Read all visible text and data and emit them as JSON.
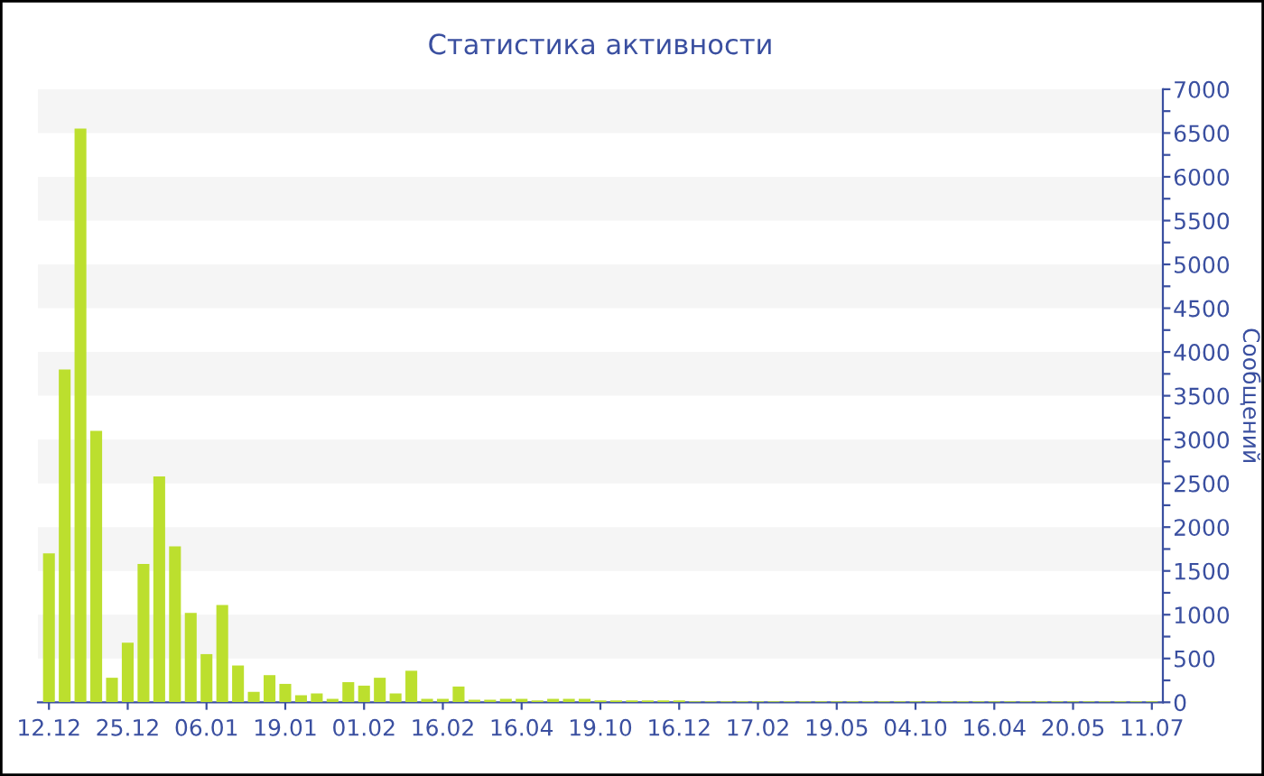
{
  "chart_data": {
    "type": "bar",
    "title": "Статистика активности",
    "ylabel": "Сообщений",
    "categories": [
      "12.12",
      null,
      null,
      null,
      null,
      "25.12",
      null,
      null,
      null,
      null,
      "06.01",
      null,
      null,
      null,
      null,
      "19.01",
      null,
      null,
      null,
      null,
      "01.02",
      null,
      null,
      null,
      null,
      "16.02",
      null,
      null,
      null,
      null,
      "16.04",
      null,
      null,
      null,
      null,
      "19.10",
      null,
      null,
      null,
      null,
      "16.12",
      null,
      null,
      null,
      null,
      "17.02",
      null,
      null,
      null,
      null,
      "19.05",
      null,
      null,
      null,
      null,
      "04.10",
      null,
      null,
      null,
      null,
      "16.04",
      null,
      null,
      null,
      null,
      "20.05",
      null,
      null,
      null,
      null,
      "11.07"
    ],
    "values": [
      1700,
      3800,
      6550,
      3100,
      280,
      680,
      1580,
      2580,
      1780,
      1020,
      550,
      1110,
      420,
      120,
      310,
      210,
      80,
      100,
      40,
      230,
      190,
      280,
      100,
      360,
      40,
      40,
      180,
      30,
      30,
      40,
      40,
      20,
      40,
      40,
      40,
      20,
      20,
      20,
      20,
      20,
      20,
      10,
      10,
      10,
      10,
      10,
      10,
      10,
      10,
      10,
      10,
      10,
      10,
      10,
      10,
      10,
      10,
      10,
      10,
      10,
      10,
      10,
      10,
      10,
      10,
      10,
      10,
      10,
      10,
      10,
      10
    ],
    "color": "#bcdf2e",
    "ylim": [
      0,
      7000
    ],
    "yticks": [
      0,
      {
        "value": 250,
        "label": null
      },
      500,
      {
        "value": 750,
        "label": null
      },
      1000,
      {
        "value": 1250,
        "label": null
      },
      1500,
      {
        "value": 1750,
        "label": null
      },
      2000,
      {
        "value": 2250,
        "label": null
      },
      2500,
      {
        "value": 2750,
        "label": null
      },
      3000,
      {
        "value": 3250,
        "label": null
      },
      3500,
      {
        "value": 3750,
        "label": null
      },
      4000,
      {
        "value": 4250,
        "label": null
      },
      4500,
      {
        "value": 4750,
        "label": null
      },
      5000,
      {
        "value": 5250,
        "label": null
      },
      5500,
      {
        "value": 5750,
        "label": null
      },
      6000,
      {
        "value": 6250,
        "label": null
      },
      6500,
      {
        "value": 6750,
        "label": null
      },
      7000
    ],
    "bands": [
      {
        "axis": "y",
        "from": 500,
        "to": 1000,
        "color": "#f5f5f5"
      },
      {
        "axis": "y",
        "from": 1500,
        "to": 2000,
        "color": "#f5f5f5"
      },
      {
        "axis": "y",
        "from": 2500,
        "to": 3000,
        "color": "#f5f5f5"
      },
      {
        "axis": "y",
        "from": 3500,
        "to": 4000,
        "color": "#f5f5f5"
      },
      {
        "axis": "y",
        "from": 4500,
        "to": 5000,
        "color": "#f5f5f5"
      },
      {
        "axis": "y",
        "from": 5500,
        "to": 6000,
        "color": "#f5f5f5"
      },
      {
        "axis": "y",
        "from": 6500,
        "to": 7000,
        "color": "#f5f5f5"
      }
    ]
  }
}
